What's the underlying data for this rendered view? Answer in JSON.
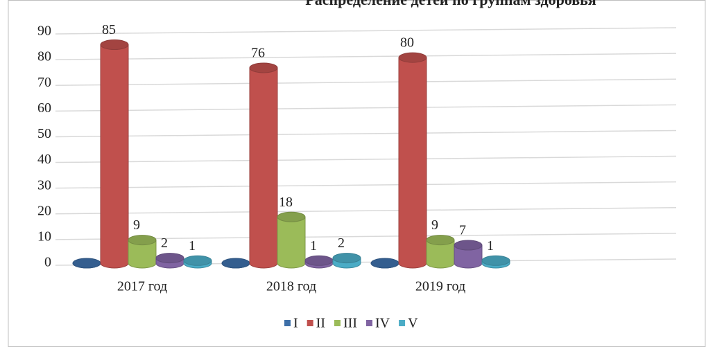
{
  "chart_data": {
    "type": "bar",
    "title": "Распределение детей по группам здоровья",
    "categories": [
      "2017 год",
      "2018 год",
      "2019 год"
    ],
    "series": [
      {
        "name": "I",
        "color": "#3d6fa8",
        "values": [
          0,
          0,
          0
        ]
      },
      {
        "name": "II",
        "color": "#c0504d",
        "values": [
          85,
          76,
          80
        ]
      },
      {
        "name": "III",
        "color": "#9bbb59",
        "values": [
          9,
          18,
          9
        ]
      },
      {
        "name": "IV",
        "color": "#8064a2",
        "values": [
          2,
          1,
          7
        ]
      },
      {
        "name": "V",
        "color": "#4bacc6",
        "values": [
          1,
          2,
          1
        ]
      }
    ],
    "ylim": [
      0,
      90
    ],
    "yticks": [
      0,
      10,
      20,
      30,
      40,
      50,
      60,
      70,
      80,
      90
    ],
    "grid": true,
    "legend": "bottom"
  }
}
